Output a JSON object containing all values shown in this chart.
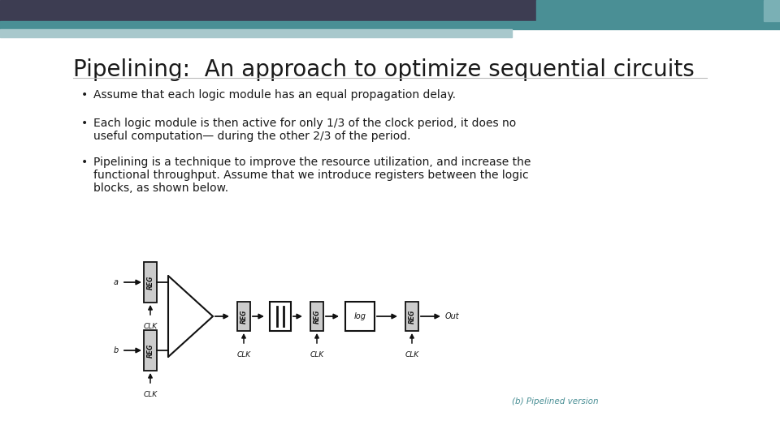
{
  "title": "Pipelining:  An approach to optimize sequential circuits",
  "bullet1": "Assume that each logic module has an equal propagation delay.",
  "bullet2a": "Each logic module is then active for only 1/3 of the clock period, it does no",
  "bullet2b": "useful computation— during the other 2/3 of the period.",
  "bullet3a": "Pipelining is a technique to improve the resource utilization, and increase the",
  "bullet3b": "functional throughput. Assume that we introduce registers between the logic",
  "bullet3c": "blocks, as shown below.",
  "caption": "(b) Pipelined version",
  "bg_color": "#ffffff",
  "header_dark": "#3d3d52",
  "header_teal": "#4a8f95",
  "header_teal_light": "#a8c8cc",
  "title_color": "#1a1a1a",
  "bullet_color": "#1a1a1a",
  "diagram_gray": "#cccccc",
  "caption_color": "#4a8f95",
  "black": "#111111"
}
